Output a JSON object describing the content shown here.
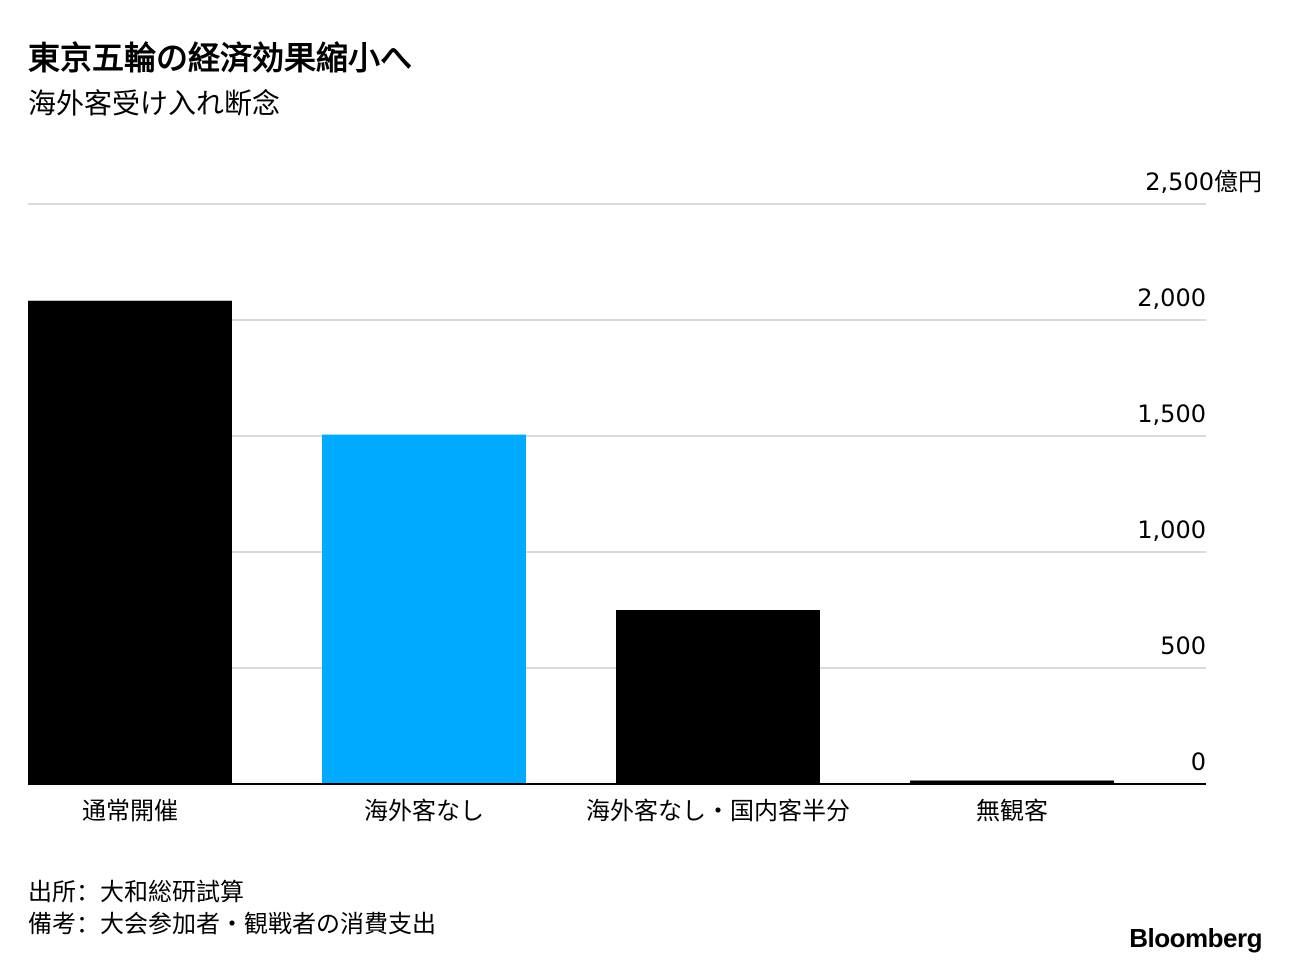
{
  "title": "東京五輪の経済効果縮小へ",
  "subtitle": "海外客受け入れ断念",
  "chart_data": {
    "type": "bar",
    "categories": [
      "通常開催",
      "海外客なし",
      "海外客なし・国内客半分",
      "無観客"
    ],
    "values": [
      2083,
      1506,
      750,
      15
    ],
    "bar_colors": [
      "#000000",
      "#00aaff",
      "#000000",
      "#000000"
    ],
    "ylim": [
      0,
      2500
    ],
    "yticks": [
      0,
      500,
      1000,
      1500,
      2000,
      2500
    ],
    "ytick_labels": [
      "0",
      "500",
      "1,000",
      "1,500",
      "2,000",
      "2,500億円"
    ],
    "grid": true,
    "axis_position": "right"
  },
  "footnotes": {
    "source": "出所：大和総研試算",
    "note": "備考：大会参加者・観戦者の消費支出"
  },
  "brand": "Bloomberg"
}
